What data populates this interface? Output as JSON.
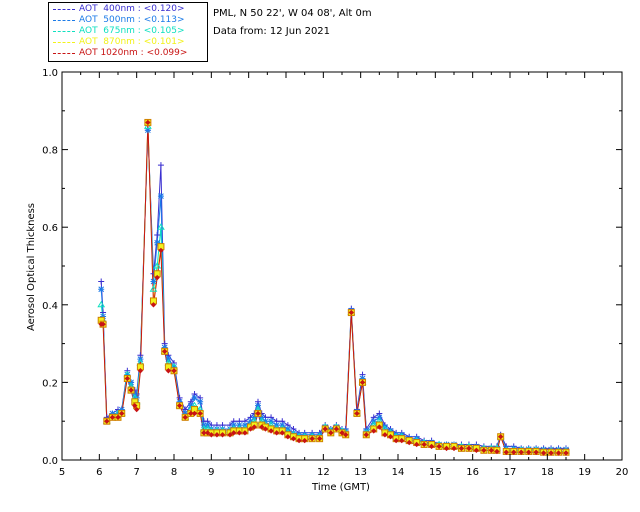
{
  "legend": [
    {
      "label": "AOT  400nm : <0.120>",
      "color": "#3a2fd0"
    },
    {
      "label": "AOT  500nm : <0.113>",
      "color": "#1c7be8"
    },
    {
      "label": "AOT  675nm : <0.105>",
      "color": "#10e0c0"
    },
    {
      "label": "AOT  870nm : <0.101>",
      "color": "#f2f21a"
    },
    {
      "label": "AOT 1020nm : <0.099>",
      "color": "#c81414"
    }
  ],
  "info": {
    "site": "PML, N 50 22', W 04 08', Alt 0m",
    "date": "Data from: 12 Jun 2021"
  },
  "chart_data": {
    "type": "line",
    "title": "",
    "xlabel": "Time (GMT)",
    "ylabel": "Aerosol Optical Thickness",
    "xlim": [
      5,
      20
    ],
    "ylim": [
      0,
      1.0
    ],
    "xticks": [
      "5",
      "6",
      "7",
      "8",
      "9",
      "10",
      "11",
      "12",
      "13",
      "14",
      "15",
      "16",
      "17",
      "18",
      "19",
      "20"
    ],
    "yticks": [
      "0.0",
      "0.2",
      "0.4",
      "0.6",
      "0.8",
      "1.0"
    ],
    "grid": false,
    "x": [
      6.05,
      6.1,
      6.2,
      6.35,
      6.5,
      6.6,
      6.75,
      6.85,
      6.95,
      7.0,
      7.1,
      7.3,
      7.45,
      7.55,
      7.65,
      7.75,
      7.85,
      8.0,
      8.15,
      8.3,
      8.45,
      8.55,
      8.7,
      8.8,
      8.9,
      9.0,
      9.15,
      9.3,
      9.5,
      9.6,
      9.75,
      9.9,
      10.05,
      10.15,
      10.25,
      10.35,
      10.45,
      10.6,
      10.75,
      10.9,
      11.05,
      11.2,
      11.35,
      11.5,
      11.7,
      11.9,
      12.05,
      12.2,
      12.35,
      12.5,
      12.6,
      12.75,
      12.9,
      13.05,
      13.15,
      13.35,
      13.5,
      13.65,
      13.8,
      13.95,
      14.1,
      14.3,
      14.5,
      14.7,
      14.9,
      15.1,
      15.3,
      15.5,
      15.7,
      15.9,
      16.1,
      16.3,
      16.5,
      16.65,
      16.75,
      16.9,
      17.1,
      17.3,
      17.5,
      17.7,
      17.9,
      18.1,
      18.3,
      18.5
    ],
    "series": [
      {
        "name": "AOT  400nm : <0.120>",
        "values": [
          0.46,
          0.38,
          0.11,
          0.12,
          0.13,
          0.13,
          0.23,
          0.2,
          0.18,
          0.17,
          0.27,
          0.85,
          0.48,
          0.58,
          0.76,
          0.3,
          0.27,
          0.25,
          0.16,
          0.13,
          0.15,
          0.17,
          0.16,
          0.1,
          0.1,
          0.09,
          0.09,
          0.09,
          0.09,
          0.1,
          0.1,
          0.1,
          0.11,
          0.12,
          0.15,
          0.12,
          0.11,
          0.11,
          0.1,
          0.1,
          0.09,
          0.08,
          0.07,
          0.07,
          0.07,
          0.07,
          0.09,
          0.08,
          0.09,
          0.08,
          0.08,
          0.39,
          0.13,
          0.22,
          0.08,
          0.11,
          0.12,
          0.09,
          0.08,
          0.07,
          0.07,
          0.06,
          0.06,
          0.05,
          0.05,
          0.04,
          0.04,
          0.04,
          0.04,
          0.04,
          0.04,
          0.035,
          0.035,
          0.035,
          0.065,
          0.035,
          0.035,
          0.03,
          0.03,
          0.03,
          0.03,
          0.03,
          0.03,
          0.03
        ]
      },
      {
        "name": "AOT  500nm : <0.113>",
        "values": [
          0.44,
          0.37,
          0.1,
          0.12,
          0.12,
          0.13,
          0.22,
          0.2,
          0.17,
          0.16,
          0.26,
          0.85,
          0.46,
          0.56,
          0.68,
          0.29,
          0.26,
          0.24,
          0.15,
          0.12,
          0.14,
          0.16,
          0.15,
          0.09,
          0.09,
          0.08,
          0.08,
          0.08,
          0.08,
          0.09,
          0.09,
          0.09,
          0.1,
          0.11,
          0.14,
          0.11,
          0.1,
          0.1,
          0.09,
          0.09,
          0.08,
          0.07,
          0.065,
          0.065,
          0.065,
          0.065,
          0.085,
          0.075,
          0.085,
          0.075,
          0.075,
          0.385,
          0.125,
          0.21,
          0.075,
          0.1,
          0.11,
          0.085,
          0.075,
          0.065,
          0.065,
          0.055,
          0.055,
          0.045,
          0.045,
          0.04,
          0.04,
          0.04,
          0.035,
          0.035,
          0.035,
          0.03,
          0.03,
          0.03,
          0.06,
          0.03,
          0.03,
          0.028,
          0.028,
          0.028,
          0.027,
          0.027,
          0.027,
          0.027
        ]
      },
      {
        "name": "AOT  675nm : <0.105>",
        "values": [
          0.4,
          0.36,
          0.1,
          0.11,
          0.12,
          0.12,
          0.22,
          0.19,
          0.16,
          0.15,
          0.25,
          0.86,
          0.44,
          0.5,
          0.6,
          0.28,
          0.25,
          0.24,
          0.14,
          0.11,
          0.13,
          0.14,
          0.13,
          0.08,
          0.08,
          0.075,
          0.075,
          0.075,
          0.075,
          0.08,
          0.08,
          0.08,
          0.09,
          0.1,
          0.13,
          0.1,
          0.09,
          0.09,
          0.08,
          0.08,
          0.07,
          0.065,
          0.06,
          0.06,
          0.06,
          0.06,
          0.085,
          0.075,
          0.085,
          0.075,
          0.07,
          0.38,
          0.12,
          0.2,
          0.07,
          0.09,
          0.1,
          0.08,
          0.07,
          0.06,
          0.06,
          0.05,
          0.05,
          0.045,
          0.04,
          0.04,
          0.035,
          0.035,
          0.035,
          0.035,
          0.03,
          0.03,
          0.03,
          0.03,
          0.06,
          0.025,
          0.025,
          0.025,
          0.025,
          0.025,
          0.022,
          0.022,
          0.022,
          0.022
        ]
      },
      {
        "name": "AOT  870nm : <0.101>",
        "values": [
          0.36,
          0.35,
          0.1,
          0.11,
          0.11,
          0.12,
          0.21,
          0.18,
          0.15,
          0.14,
          0.24,
          0.87,
          0.41,
          0.48,
          0.55,
          0.28,
          0.24,
          0.23,
          0.14,
          0.11,
          0.12,
          0.13,
          0.12,
          0.07,
          0.07,
          0.07,
          0.07,
          0.07,
          0.07,
          0.075,
          0.075,
          0.075,
          0.085,
          0.09,
          0.12,
          0.09,
          0.085,
          0.08,
          0.075,
          0.075,
          0.065,
          0.06,
          0.055,
          0.055,
          0.055,
          0.055,
          0.08,
          0.07,
          0.08,
          0.07,
          0.065,
          0.38,
          0.12,
          0.2,
          0.065,
          0.08,
          0.09,
          0.07,
          0.065,
          0.055,
          0.055,
          0.05,
          0.045,
          0.04,
          0.04,
          0.035,
          0.035,
          0.035,
          0.03,
          0.03,
          0.03,
          0.025,
          0.025,
          0.025,
          0.06,
          0.022,
          0.022,
          0.022,
          0.022,
          0.022,
          0.02,
          0.02,
          0.02,
          0.02
        ]
      },
      {
        "name": "AOT 1020nm : <0.099>",
        "values": [
          0.35,
          0.35,
          0.1,
          0.11,
          0.11,
          0.12,
          0.21,
          0.18,
          0.14,
          0.13,
          0.23,
          0.87,
          0.4,
          0.47,
          0.54,
          0.28,
          0.23,
          0.23,
          0.14,
          0.11,
          0.12,
          0.12,
          0.12,
          0.07,
          0.07,
          0.065,
          0.065,
          0.065,
          0.065,
          0.07,
          0.07,
          0.07,
          0.08,
          0.085,
          0.12,
          0.085,
          0.08,
          0.075,
          0.07,
          0.07,
          0.06,
          0.055,
          0.05,
          0.05,
          0.055,
          0.055,
          0.08,
          0.07,
          0.08,
          0.07,
          0.065,
          0.38,
          0.12,
          0.2,
          0.065,
          0.075,
          0.085,
          0.065,
          0.06,
          0.05,
          0.05,
          0.045,
          0.04,
          0.04,
          0.035,
          0.035,
          0.03,
          0.03,
          0.03,
          0.03,
          0.025,
          0.025,
          0.025,
          0.022,
          0.06,
          0.02,
          0.02,
          0.02,
          0.02,
          0.02,
          0.018,
          0.018,
          0.018,
          0.018
        ]
      }
    ]
  }
}
